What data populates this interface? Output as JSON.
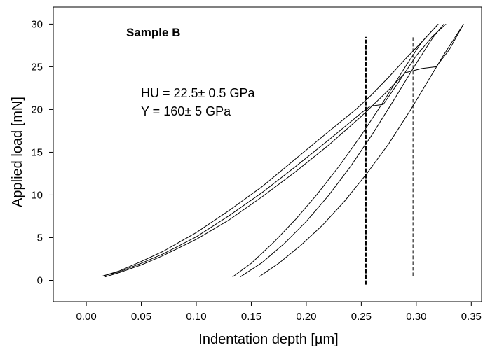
{
  "chart_data": {
    "type": "line",
    "title": "",
    "panel_label": "Sample B",
    "xlabel": "Indentation depth [µm]",
    "ylabel": "Applied load [mN]",
    "xlim": [
      -0.03,
      0.36
    ],
    "ylim": [
      -2.5,
      32
    ],
    "x_ticks": [
      0.0,
      0.05,
      0.1,
      0.15,
      0.2,
      0.25,
      0.3,
      0.35
    ],
    "x_tick_labels": [
      "0.00",
      "0.05",
      "0.10",
      "0.15",
      "0.20",
      "0.25",
      "0.30",
      "0.35"
    ],
    "y_ticks": [
      0,
      5,
      10,
      15,
      20,
      25,
      30
    ],
    "y_tick_labels": [
      "0",
      "5",
      "10",
      "15",
      "20",
      "25",
      "30"
    ],
    "grid": false,
    "annotations": [
      "HU = 22.5± 0.5 GPa",
      "Y = 160± 5 GPa"
    ],
    "vertical_lines": [
      {
        "x": 0.254,
        "style": "thick-dashed",
        "y_range": [
          -0.5,
          28.5
        ]
      },
      {
        "x": 0.297,
        "style": "thin-dashed",
        "y_range": [
          0.5,
          28.5
        ]
      }
    ],
    "series": [
      {
        "values": [
          [
            0.015,
            0.5
          ],
          [
            0.03,
            1.1
          ],
          [
            0.05,
            2.2
          ],
          [
            0.07,
            3.4
          ],
          [
            0.1,
            5.6
          ],
          [
            0.13,
            8.2
          ],
          [
            0.16,
            11.0
          ],
          [
            0.19,
            14.2
          ],
          [
            0.22,
            17.4
          ],
          [
            0.245,
            20.0
          ],
          [
            0.26,
            21.8
          ],
          [
            0.275,
            23.8
          ],
          [
            0.29,
            25.9
          ],
          [
            0.305,
            27.9
          ],
          [
            0.32,
            30.0
          ]
        ]
      },
      {
        "values": [
          [
            0.015,
            0.5
          ],
          [
            0.03,
            1.0
          ],
          [
            0.05,
            2.0
          ],
          [
            0.07,
            3.1
          ],
          [
            0.1,
            5.1
          ],
          [
            0.13,
            7.6
          ],
          [
            0.16,
            10.3
          ],
          [
            0.19,
            13.3
          ],
          [
            0.22,
            16.4
          ],
          [
            0.25,
            19.6
          ],
          [
            0.258,
            20.4
          ],
          [
            0.27,
            20.6
          ],
          [
            0.285,
            23.4
          ],
          [
            0.3,
            26.3
          ],
          [
            0.315,
            28.6
          ],
          [
            0.327,
            30.0
          ]
        ]
      },
      {
        "values": [
          [
            0.017,
            0.4
          ],
          [
            0.03,
            0.9
          ],
          [
            0.05,
            1.8
          ],
          [
            0.07,
            2.9
          ],
          [
            0.1,
            4.8
          ],
          [
            0.13,
            7.1
          ],
          [
            0.16,
            9.8
          ],
          [
            0.19,
            12.7
          ],
          [
            0.22,
            15.8
          ],
          [
            0.25,
            19.2
          ],
          [
            0.275,
            22.3
          ],
          [
            0.29,
            24.3
          ],
          [
            0.305,
            24.8
          ],
          [
            0.318,
            25.0
          ],
          [
            0.33,
            27.0
          ],
          [
            0.343,
            30.0
          ]
        ]
      },
      {
        "values": [
          [
            0.133,
            0.4
          ],
          [
            0.15,
            2.0
          ],
          [
            0.17,
            4.4
          ],
          [
            0.19,
            7.1
          ],
          [
            0.21,
            10.1
          ],
          [
            0.23,
            13.4
          ],
          [
            0.25,
            17.0
          ],
          [
            0.27,
            20.9
          ],
          [
            0.29,
            25.0
          ],
          [
            0.305,
            27.9
          ],
          [
            0.32,
            30.0
          ]
        ]
      },
      {
        "values": [
          [
            0.14,
            0.4
          ],
          [
            0.16,
            2.1
          ],
          [
            0.18,
            4.3
          ],
          [
            0.2,
            6.9
          ],
          [
            0.22,
            9.9
          ],
          [
            0.24,
            13.3
          ],
          [
            0.26,
            17.1
          ],
          [
            0.28,
            21.2
          ],
          [
            0.3,
            25.4
          ],
          [
            0.315,
            28.4
          ],
          [
            0.325,
            30.0
          ]
        ]
      },
      {
        "values": [
          [
            0.157,
            0.4
          ],
          [
            0.175,
            2.0
          ],
          [
            0.195,
            4.1
          ],
          [
            0.215,
            6.5
          ],
          [
            0.235,
            9.3
          ],
          [
            0.255,
            12.5
          ],
          [
            0.275,
            16.0
          ],
          [
            0.295,
            20.0
          ],
          [
            0.31,
            23.2
          ],
          [
            0.325,
            26.4
          ],
          [
            0.343,
            30.0
          ]
        ]
      }
    ]
  }
}
